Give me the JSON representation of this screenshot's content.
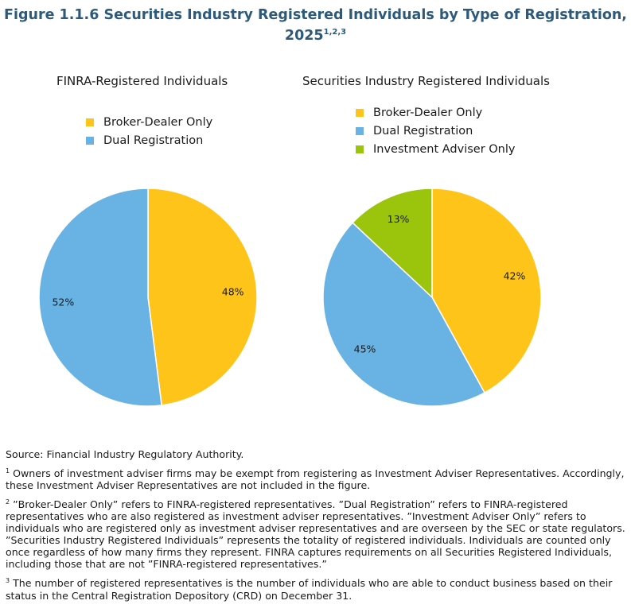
{
  "title": "Figure 1.1.6 Securities Industry Registered Individuals by Type of Registration, 2025",
  "title_sup": "1,2,3",
  "colors": {
    "broker_dealer": "#FFC41A",
    "dual": "#68B3E3",
    "investment_adviser": "#9BC40C",
    "title": "#2E5A7A"
  },
  "chart_data": [
    {
      "type": "pie",
      "title": "FINRA-Registered Individuals",
      "legend_position": "top",
      "slices": [
        {
          "name": "Broker-Dealer Only",
          "value": 48,
          "label": "48%"
        },
        {
          "name": "Dual Registration",
          "value": 52,
          "label": "52%"
        }
      ]
    },
    {
      "type": "pie",
      "title": "Securities Industry Registered Individuals",
      "legend_position": "top",
      "slices": [
        {
          "name": "Broker-Dealer Only",
          "value": 42,
          "label": "42%"
        },
        {
          "name": "Dual Registration",
          "value": 45,
          "label": "45%"
        },
        {
          "name": "Investment Adviser Only",
          "value": 13,
          "label": "13%"
        }
      ]
    }
  ],
  "notes": {
    "source": "Source: Financial Industry Regulatory Authority.",
    "n1_sup": "1",
    "n1": " Owners of investment adviser firms may be exempt from registering as Investment Adviser Representatives. Accordingly, these Investment Adviser Representatives are not included in the figure.",
    "n2_sup": "2",
    "n2": " ”Broker-Dealer Only” refers to FINRA-registered representatives. ”Dual Registration” refers to FINRA-registered representatives who are also registered as investment adviser representatives. ”Investment Adviser Only” refers to individuals who are registered only as investment adviser representatives and are overseen by the SEC or state regulators. ”Securities Industry Registered Individuals” represents the totality of registered individuals. Individuals are counted only once regardless of how many firms they represent. FINRA captures requirements on all Securities Registered Individuals, including those that are not ”FINRA-registered representatives.”",
    "n3_sup": "3",
    "n3": " The number of registered representatives is the number of individuals who are able to conduct business based on their status in the Central Registration Depository (CRD) on December 31."
  }
}
